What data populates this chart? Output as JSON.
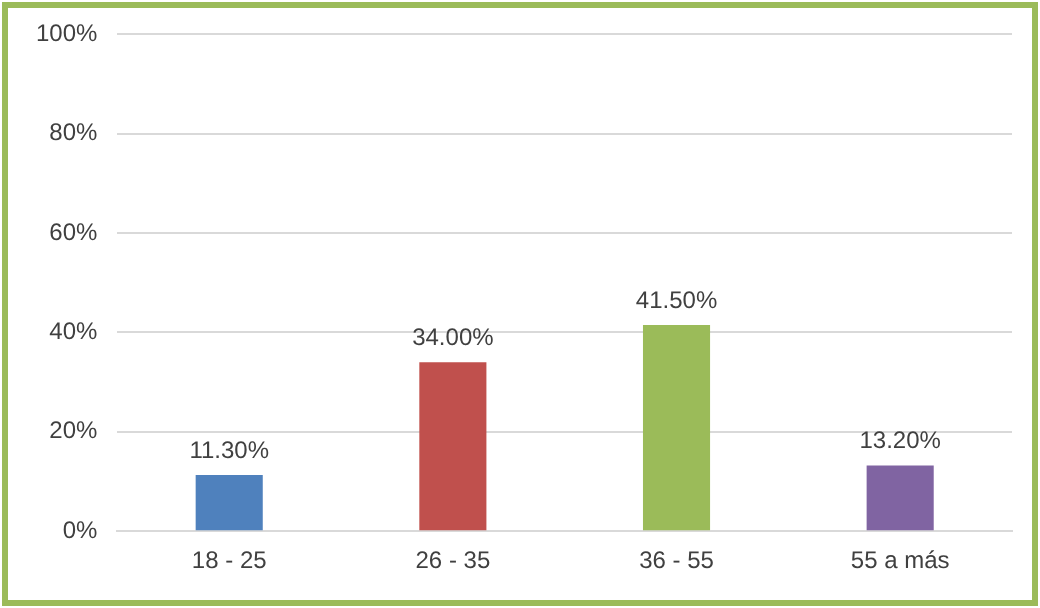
{
  "chart_data": {
    "type": "bar",
    "categories": [
      "18 - 25",
      "26 - 35",
      "36 - 55",
      "55 a más"
    ],
    "values": [
      11.3,
      34,
      41.5,
      13.2
    ],
    "colors": [
      "#4f81bd",
      "#c0504d",
      "#9bbb59",
      "#8064a2"
    ],
    "value_labels": [
      "11.30%",
      "34.00%",
      "41.50%",
      "13.20%"
    ],
    "ylim": [
      0,
      100
    ],
    "yticks": [
      {
        "value": 0,
        "label": "0%"
      },
      {
        "value": 20,
        "label": "20%"
      },
      {
        "value": 40,
        "label": "40%"
      },
      {
        "value": 60,
        "label": "60%"
      },
      {
        "value": 80,
        "label": "80%"
      },
      {
        "value": 100,
        "label": "100%"
      }
    ],
    "grid": "y",
    "legend": false
  }
}
